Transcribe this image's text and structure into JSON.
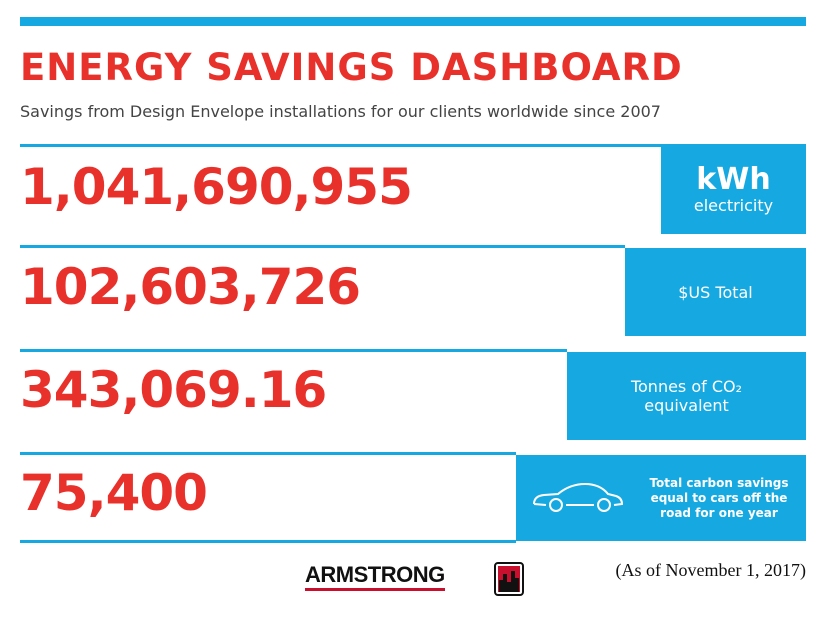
{
  "header": {
    "title": "ENERGY SAVINGS DASHBOARD",
    "subtitle": "Savings from Design Envelope installations for our clients worldwide since 2007"
  },
  "rows": [
    {
      "value": "1,041,690,955",
      "label": [
        "kWh",
        "electricity"
      ]
    },
    {
      "value": "102,603,726",
      "label": [
        "$US Total"
      ]
    },
    {
      "value": "343,069.16",
      "label": [
        "Tonnes of CO₂",
        "equivalent"
      ]
    },
    {
      "value": "75,400",
      "label": [
        "Total carbon savings",
        "equal to cars off the",
        "road for one year"
      ]
    }
  ],
  "footer": {
    "logo": "ARMSTRONG",
    "date": "(As of November 1, 2017)"
  }
}
